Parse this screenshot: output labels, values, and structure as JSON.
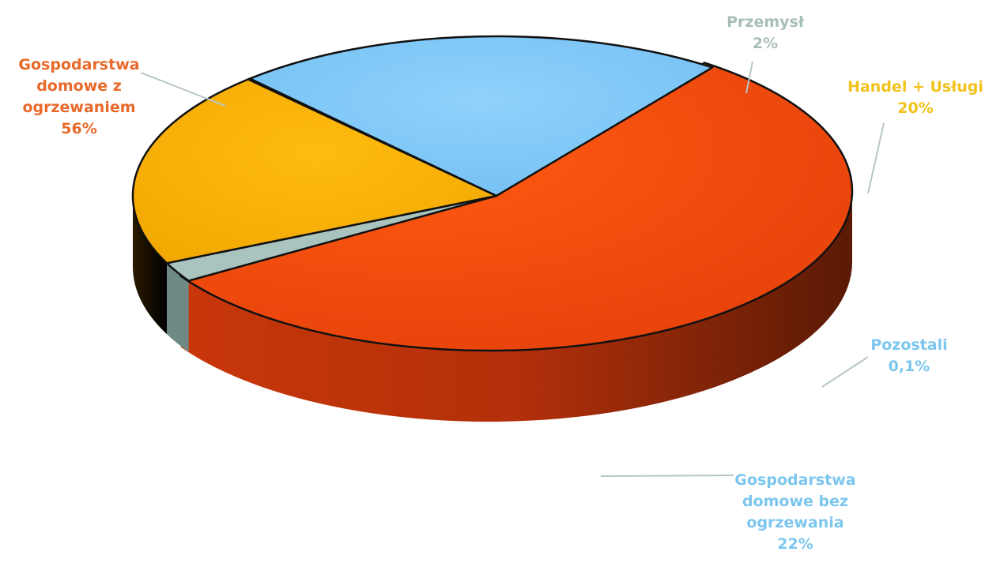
{
  "chart_data": {
    "type": "pie",
    "style": "3d-tilted",
    "slices": [
      {
        "label_lines": [
          "Gospodarstwa",
          "domowe z",
          "ogrzewaniem"
        ],
        "value_label": "56%",
        "value": 56,
        "color": "#f04a0f",
        "label_color": "#e8692a"
      },
      {
        "label_lines": [
          "Przemysł"
        ],
        "value_label": "2%",
        "value": 2,
        "color": "#a9c3bf",
        "label_color": "#a9bdb9"
      },
      {
        "label_lines": [
          "Handel + Usługi"
        ],
        "value_label": "20%",
        "value": 20,
        "color": "#f5b000",
        "label_color": "#f2c21a"
      },
      {
        "label_lines": [
          "Pozostali"
        ],
        "value_label": "0,1%",
        "value": 0.1,
        "color": "#2b3a8a",
        "label_color": "#7cc6ee"
      },
      {
        "label_lines": [
          "Gospodarstwa",
          "domowe bez",
          "ogrzewania"
        ],
        "value_label": "22%",
        "value": 22,
        "color": "#7fc9f7",
        "label_color": "#7cc6ee"
      }
    ]
  }
}
